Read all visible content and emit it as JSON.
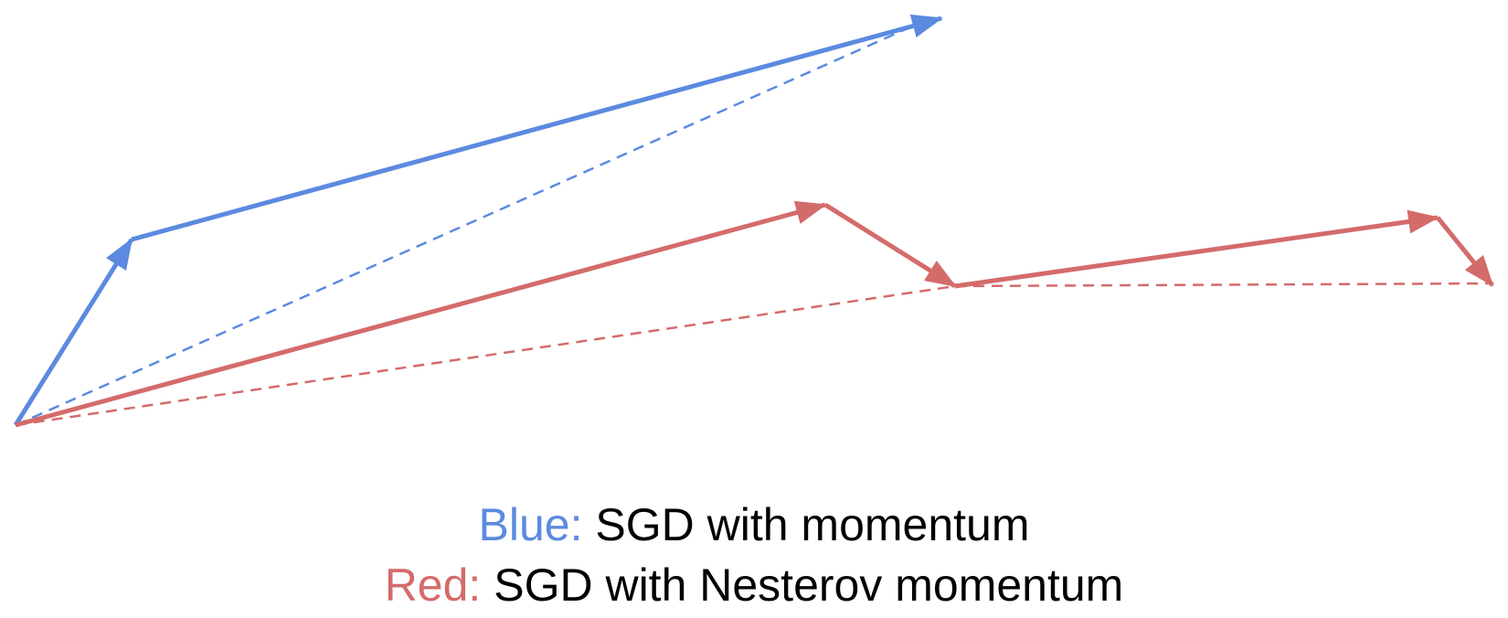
{
  "colors": {
    "blue": "#5b8ae0",
    "red": "#d46b6b",
    "text": "#000000"
  },
  "legend": {
    "blue": {
      "key": "Blue:",
      "text": "SGD with momentum"
    },
    "red": {
      "key": "Red:",
      "text": "SGD with Nesterov momentum"
    }
  }
}
